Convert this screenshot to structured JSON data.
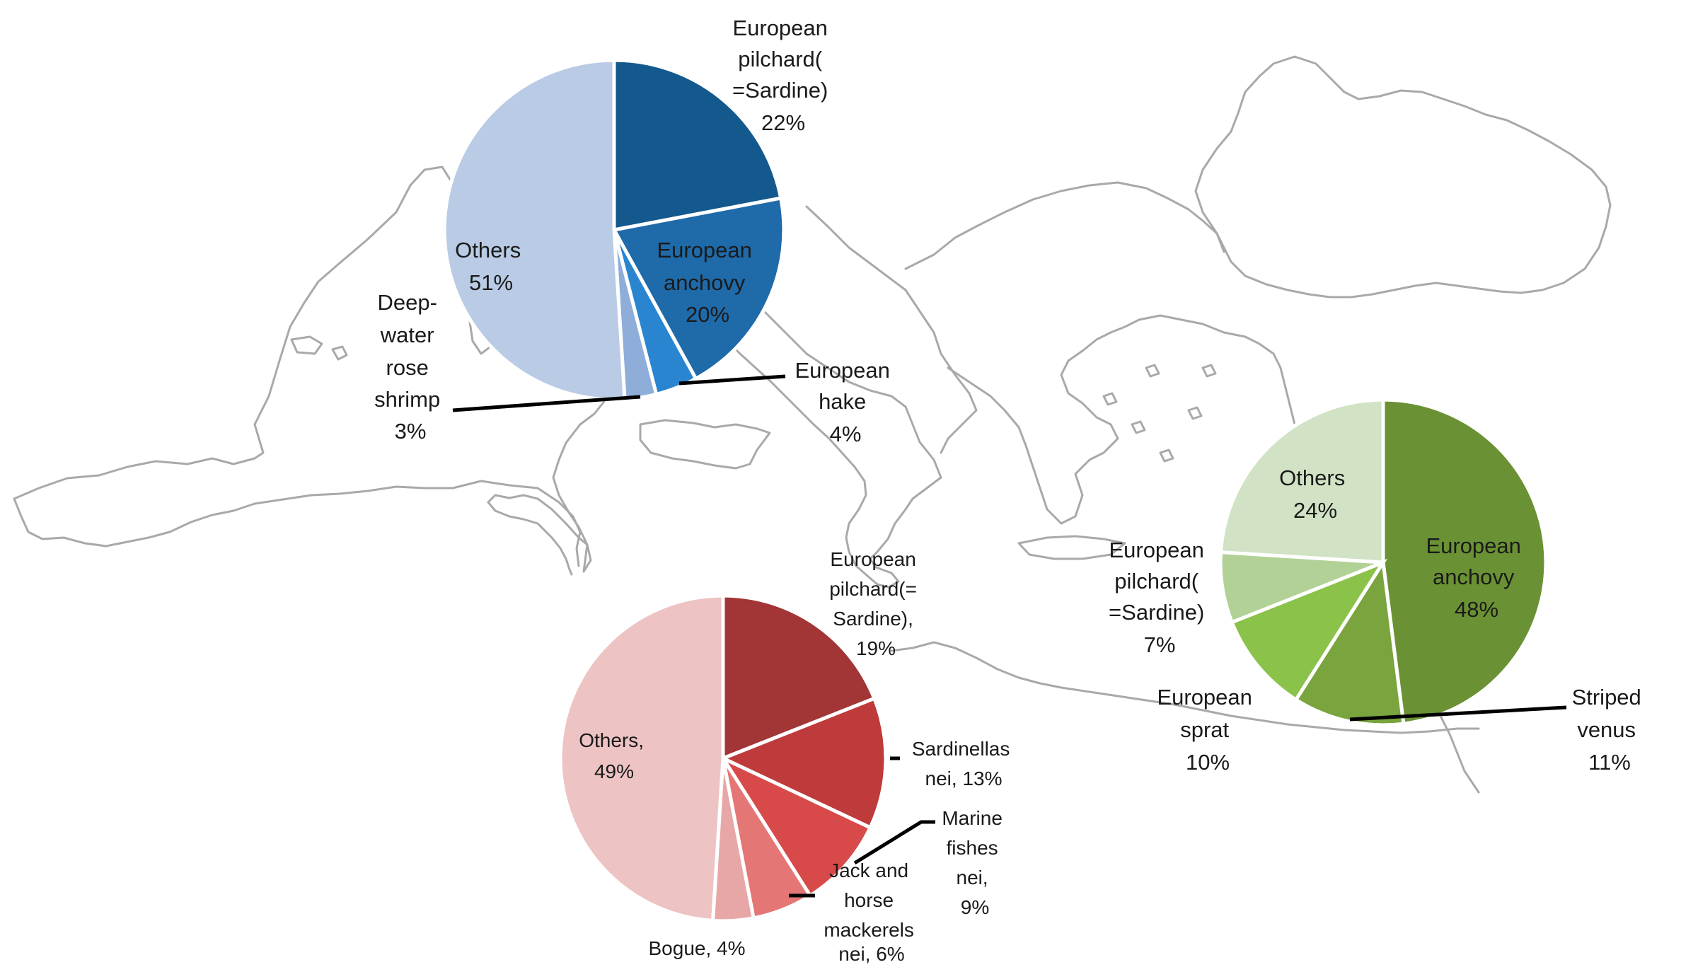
{
  "chart_data": [
    {
      "type": "pie",
      "title": "",
      "slices": [
        {
          "label": "European pilchard(=Sardine)",
          "display": "European\npilchard(\n=Sardine)\n22%",
          "value": 22,
          "color": "#13598e"
        },
        {
          "label": "European anchovy",
          "display": "European\nanchovy\n20%",
          "value": 20,
          "color": "#1f6aa9"
        },
        {
          "label": "European hake",
          "display": "European\nhake\n4%",
          "value": 4,
          "color": "#2a85d1"
        },
        {
          "label": "Deep-water rose shrimp",
          "display": "Deep-\nwater\nrose\nshrimp\n3%",
          "value": 3,
          "color": "#8eaed9"
        },
        {
          "label": "Others",
          "display": "Others\n51%",
          "value": 51,
          "color": "#b9cbe5"
        }
      ]
    },
    {
      "type": "pie",
      "title": "",
      "slices": [
        {
          "label": "European pilchard(=Sardine)",
          "display": "European\npilchard(=\nSardine),\n19%",
          "value": 19,
          "color": "#a23535"
        },
        {
          "label": "Sardinellas nei",
          "display": "Sardinellas\nnei, 13%",
          "value": 13,
          "color": "#be3a3b"
        },
        {
          "label": "Marine fishes nei",
          "display": "Marine\nfishes\nnei,\n9%",
          "value": 9,
          "color": "#d84a4a"
        },
        {
          "label": "Jack and horse mackerels nei",
          "display": "Jack and\nhorse\nmackerels\nnei, 6%",
          "value": 6,
          "color": "#e47676"
        },
        {
          "label": "Bogue",
          "display": "Bogue, 4%",
          "value": 4,
          "color": "#e8a7a7"
        },
        {
          "label": "Others",
          "display": "Others,\n49%",
          "value": 49,
          "color": "#edc3c3"
        }
      ]
    },
    {
      "type": "pie",
      "title": "",
      "slices": [
        {
          "label": "European anchovy",
          "display": "European\nanchovy\n48%",
          "value": 48,
          "color": "#6a9234"
        },
        {
          "label": "Striped venus",
          "display": "Striped\nvenus\n11%",
          "value": 11,
          "color": "#79a43e"
        },
        {
          "label": "European sprat",
          "display": "European\nsprat\n10%",
          "value": 10,
          "color": "#8bc24a"
        },
        {
          "label": "European pilchard(=Sardine)",
          "display": "European\npilchard(\n=Sardine)\n7%",
          "value": 7,
          "color": "#b2d196"
        },
        {
          "label": "Others",
          "display": "Others\n24%",
          "value": 24,
          "color": "#d1e3c4"
        }
      ]
    }
  ]
}
